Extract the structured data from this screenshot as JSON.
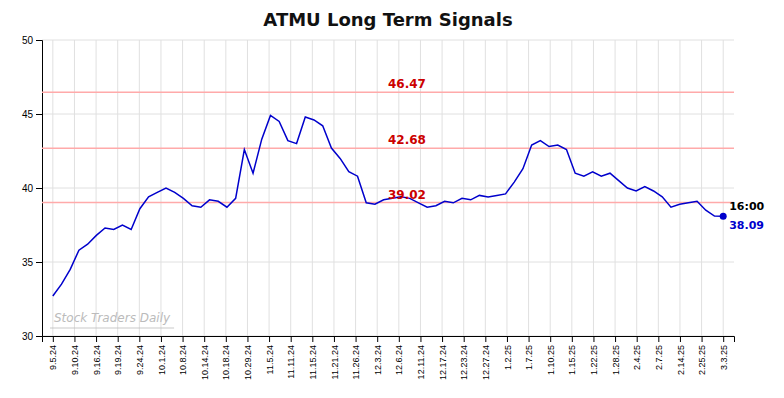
{
  "chart_data": {
    "type": "line",
    "title": "ATMU Long Term Signals",
    "color": "#0000cc",
    "grid": true,
    "watermark": "Stock Traders Daily",
    "xlim": [
      -0.5,
      31.5
    ],
    "xticks": [
      {
        "value": 0,
        "label": "9.5.24"
      },
      {
        "value": 1,
        "label": "9.10.24"
      },
      {
        "value": 2,
        "label": "9.16.24"
      },
      {
        "value": 3,
        "label": "9.19.24"
      },
      {
        "value": 4,
        "label": "9.24.24"
      },
      {
        "value": 5,
        "label": "10.1.24"
      },
      {
        "value": 6,
        "label": "10.8.24"
      },
      {
        "value": 7,
        "label": "10.14.24"
      },
      {
        "value": 8,
        "label": "10.18.24"
      },
      {
        "value": 9,
        "label": "10.29.24"
      },
      {
        "value": 10,
        "label": "11.5.24"
      },
      {
        "value": 11,
        "label": "11.11.24"
      },
      {
        "value": 12,
        "label": "11.15.24"
      },
      {
        "value": 13,
        "label": "11.21.24"
      },
      {
        "value": 14,
        "label": "11.26.24"
      },
      {
        "value": 15,
        "label": "12.3.24"
      },
      {
        "value": 16,
        "label": "12.6.24"
      },
      {
        "value": 17,
        "label": "12.11.24"
      },
      {
        "value": 18,
        "label": "12.17.24"
      },
      {
        "value": 19,
        "label": "12.23.24"
      },
      {
        "value": 20,
        "label": "12.27.24"
      },
      {
        "value": 21,
        "label": "1.2.25"
      },
      {
        "value": 22,
        "label": "1.7.25"
      },
      {
        "value": 23,
        "label": "1.10.25"
      },
      {
        "value": 24,
        "label": "1.15.25"
      },
      {
        "value": 25,
        "label": "1.22.25"
      },
      {
        "value": 26,
        "label": "1.28.25"
      },
      {
        "value": 27,
        "label": "2.4.25"
      },
      {
        "value": 28,
        "label": "2.7.25"
      },
      {
        "value": 29,
        "label": "2.14.25"
      },
      {
        "value": 30,
        "label": "2.25.25"
      },
      {
        "value": 31,
        "label": "3.3.25"
      }
    ],
    "ylim": [
      30,
      50
    ],
    "yticks": [
      30,
      35,
      40,
      45,
      50
    ],
    "hlines": [
      {
        "value": 46.47,
        "label": "46.47",
        "color": "#ffaaaa"
      },
      {
        "value": 42.68,
        "label": "42.68",
        "color": "#ffaaaa"
      },
      {
        "value": 39.02,
        "label": "39.02",
        "color": "#ffaaaa"
      }
    ],
    "last_point": {
      "label": "16:00",
      "value": 38.09,
      "color": "#0000cc"
    },
    "values": [
      32.7,
      33.5,
      34.5,
      35.8,
      36.2,
      36.8,
      37.3,
      37.2,
      37.5,
      37.2,
      38.6,
      39.4,
      39.7,
      40.0,
      39.7,
      39.3,
      38.8,
      38.7,
      39.2,
      39.1,
      38.7,
      39.3,
      42.6,
      41.0,
      43.3,
      44.9,
      44.5,
      43.2,
      43.0,
      44.8,
      44.6,
      44.2,
      42.7,
      42.0,
      41.1,
      40.8,
      39.0,
      38.9,
      39.2,
      39.3,
      39.4,
      39.3,
      39.0,
      38.7,
      38.8,
      39.1,
      39.0,
      39.3,
      39.2,
      39.5,
      39.4,
      39.5,
      39.6,
      40.4,
      41.3,
      42.9,
      43.2,
      42.8,
      42.9,
      42.6,
      41.0,
      40.8,
      41.1,
      40.8,
      41.0,
      40.5,
      40.0,
      39.8,
      40.1,
      39.8,
      39.4,
      38.7,
      38.9,
      39.0,
      39.1,
      38.5,
      38.1,
      38.09
    ]
  }
}
